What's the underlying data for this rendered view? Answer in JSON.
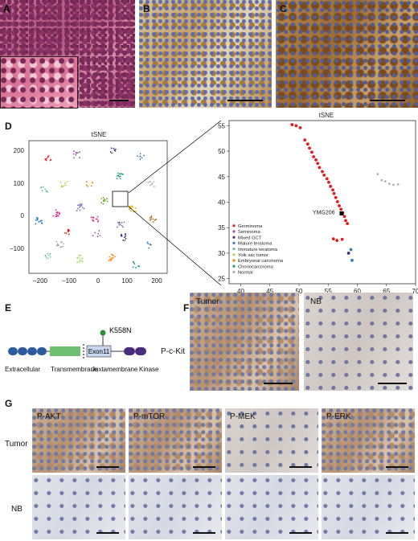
{
  "panel_labels": {
    "A": "A",
    "B": "B",
    "C": "C",
    "D": "D",
    "E": "E",
    "F": "F",
    "G": "G"
  },
  "tsne_left": {
    "title": "tSNE",
    "xticks": [
      "−200",
      "−100",
      "0",
      "100",
      "200"
    ],
    "yticks": [
      "200",
      "100",
      "0",
      "−100"
    ]
  },
  "tsne_right": {
    "title": "tSNE",
    "xticks": [
      "40",
      "45",
      "50",
      "55",
      "60",
      "65",
      "70"
    ],
    "yticks": [
      "55",
      "50",
      "45",
      "40",
      "35",
      "30",
      "25"
    ],
    "sample_label": "YMG206"
  },
  "legend": [
    {
      "name": "Germinoma",
      "color": "#e41a1c"
    },
    {
      "name": "Seminoma",
      "color": "#984ea3"
    },
    {
      "name": "Mixed GCT",
      "color": "#4d2c7a"
    },
    {
      "name": "Mature teratoma",
      "color": "#377eb8"
    },
    {
      "name": "Immature teratoma",
      "color": "#66c2a5"
    },
    {
      "name": "Yolk sac tumor",
      "color": "#a6d854"
    },
    {
      "name": "Embryonal carcinoma",
      "color": "#ff7f00"
    },
    {
      "name": "Choriocarcinoma",
      "color": "#1b9e77"
    },
    {
      "name": "Normal",
      "color": "#aaaaaa"
    }
  ],
  "chart_data": {
    "type": "scatter",
    "title": "tSNE",
    "xlim": [
      38,
      70
    ],
    "ylim": [
      24,
      56
    ],
    "series": [
      {
        "name": "Germinoma",
        "x": [
          48.8,
          49.5,
          50.2,
          51,
          51.5,
          51.8,
          52.2,
          52.5,
          52.9,
          53.2,
          53.5,
          54,
          54.3,
          54.8,
          55.1,
          55.4,
          55.8,
          56,
          56.3,
          56.6,
          56.9,
          57.2,
          57.5,
          57.8,
          58,
          58.3,
          55.9,
          56.5,
          57.4
        ],
        "y": [
          55.2,
          55,
          54.6,
          52.2,
          51.4,
          50.6,
          49.8,
          48.9,
          48.3,
          47.6,
          46.8,
          46,
          45.3,
          44.6,
          43.9,
          43.1,
          42.4,
          41.7,
          40.9,
          40.1,
          39.3,
          38.6,
          37.9,
          37.2,
          36.4,
          35.8,
          32.8,
          32.5,
          32.7
        ]
      },
      {
        "name": "Mature teratoma",
        "x": [
          58.9,
          59.1
        ],
        "y": [
          30.7,
          28.6
        ]
      },
      {
        "name": "Mixed GCT",
        "x": [
          58.5
        ],
        "y": [
          30
        ]
      },
      {
        "name": "Normal",
        "x": [
          63.5,
          64.2,
          64.8,
          65.5,
          66.2,
          67
        ],
        "y": [
          45.5,
          44.3,
          44.1,
          43.6,
          43.4,
          43.5
        ]
      }
    ],
    "highlight": {
      "label": "YMG206",
      "x": 57.3,
      "y": 37.8
    }
  },
  "gene_diagram": {
    "mutation": "K558N",
    "exon": "Exon11",
    "domains": [
      "Extracellular",
      "Transmembrane",
      "Juxtamembrane",
      "Kinase"
    ]
  },
  "panelF": {
    "row_label": "P-c-Kit",
    "col_labels": [
      "Tumor",
      "NB"
    ]
  },
  "panelG": {
    "col_labels": [
      "P-AKT",
      "P-mTOR",
      "P-MEK",
      "P-ERK"
    ],
    "row_labels": [
      "Tumor",
      "NB"
    ]
  }
}
